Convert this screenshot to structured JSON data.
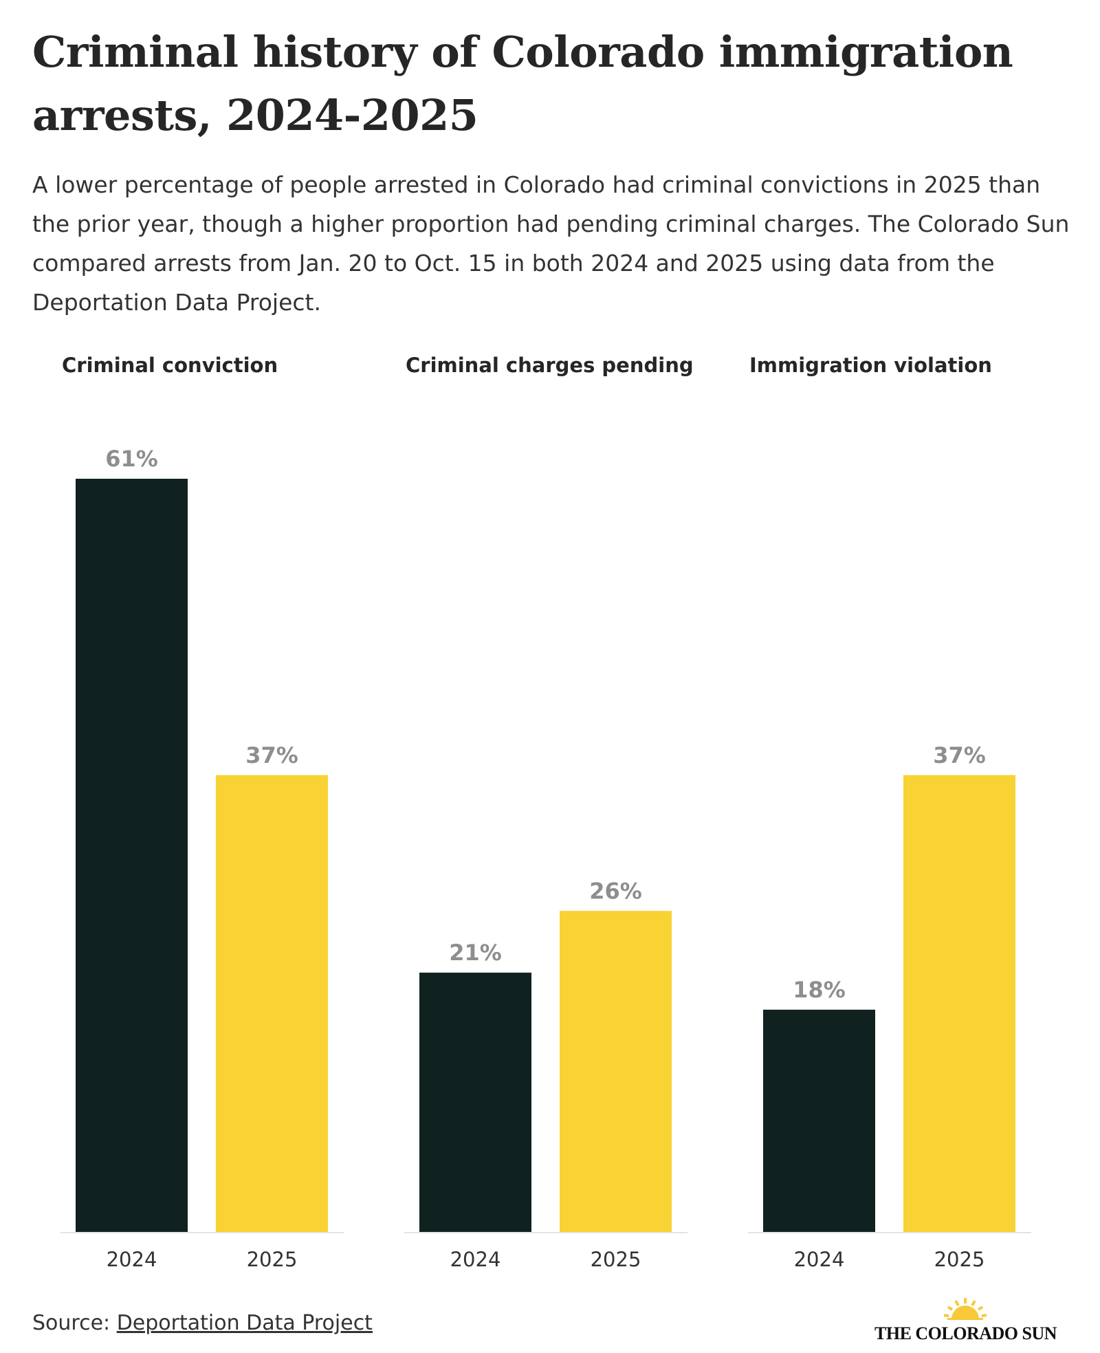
{
  "title": "Criminal history of Colorado immigration arrests, 2024-2025",
  "subtitle": "A lower percentage of people arrested in Colorado had criminal convictions in 2025 than the prior year, though a higher proportion had pending criminal charges. The Colorado Sun compared arrests from Jan. 20 to Oct. 15 in both 2024 and 2025 using data from the Deportation Data Project.",
  "source": {
    "label": "Source:",
    "link_text": "Deportation Data Project"
  },
  "logo": {
    "text": "THE COLORADO SUN"
  },
  "colors": {
    "2024": "#102220",
    "2025": "#f9d234",
    "value_label": "#8e8e8e"
  },
  "chart_data": {
    "type": "bar",
    "ylim": [
      0,
      61
    ],
    "grid": false,
    "panels": [
      {
        "title": "Criminal conviction",
        "categories": [
          "2024",
          "2025"
        ],
        "values": [
          61,
          37
        ],
        "labels": [
          "61%",
          "37%"
        ]
      },
      {
        "title": "Criminal charges pending",
        "categories": [
          "2024",
          "2025"
        ],
        "values": [
          21,
          26
        ],
        "labels": [
          "21%",
          "26%"
        ]
      },
      {
        "title": "Immigration violation",
        "categories": [
          "2024",
          "2025"
        ],
        "values": [
          18,
          37
        ],
        "labels": [
          "18%",
          "37%"
        ]
      }
    ]
  }
}
